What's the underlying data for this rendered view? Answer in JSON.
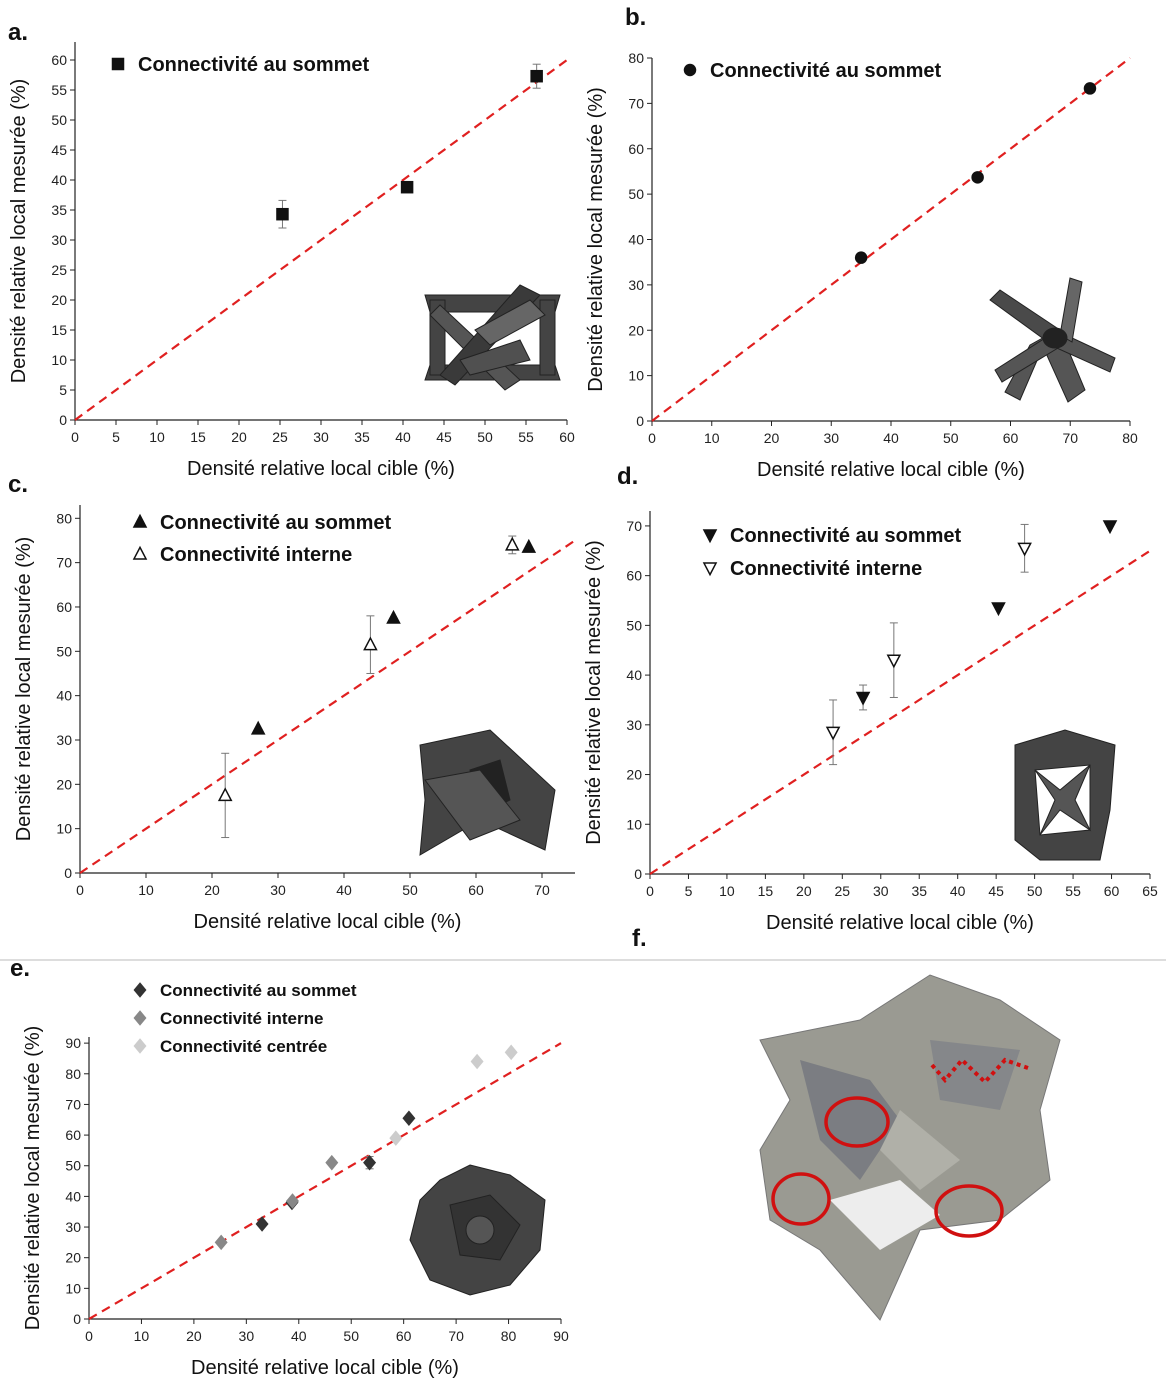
{
  "chart_data": [
    {
      "type": "scatter",
      "panel": "a.",
      "xlabel": "Densité relative local cible (%)",
      "ylabel": "Densité relative local mesurée (%)",
      "xlim": [
        0,
        60
      ],
      "ylim": [
        0,
        63
      ],
      "xticks": [
        0,
        5,
        10,
        15,
        20,
        25,
        30,
        35,
        40,
        45,
        50,
        55,
        60
      ],
      "yticks": [
        0,
        5,
        10,
        15,
        20,
        25,
        30,
        35,
        40,
        45,
        50,
        55,
        60
      ],
      "diagonal": {
        "color": "#e02020",
        "dashed": true
      },
      "series": [
        {
          "name": "Connectivité au sommet",
          "color": "#111111",
          "marker": "square",
          "filled": true,
          "x": [
            25.3,
            40.5,
            56.3
          ],
          "values": [
            34.3,
            38.8,
            57.3
          ],
          "errors": [
            2.3,
            0.8,
            2
          ]
        }
      ]
    },
    {
      "type": "scatter",
      "panel": "b.",
      "xlabel": "Densité relative local cible (%)",
      "ylabel": "Densité relative local mesurée (%)",
      "xlim": [
        0,
        80
      ],
      "ylim": [
        0,
        80
      ],
      "xticks": [
        0,
        10,
        20,
        30,
        40,
        50,
        60,
        70,
        80
      ],
      "yticks": [
        0,
        10,
        20,
        30,
        40,
        50,
        60,
        70,
        80
      ],
      "diagonal": {
        "color": "#e02020",
        "dashed": true
      },
      "series": [
        {
          "name": "Connectivité au sommet",
          "color": "#111111",
          "marker": "circle",
          "filled": true,
          "x": [
            35,
            54.5,
            73.3
          ],
          "values": [
            36,
            53.7,
            73.3
          ]
        }
      ]
    },
    {
      "type": "scatter",
      "panel": "c.",
      "xlabel": "Densité relative local cible (%)",
      "ylabel": "Densité relative local mesurée (%)",
      "xlim": [
        0,
        75
      ],
      "ylim": [
        0,
        83
      ],
      "xticks": [
        0,
        10,
        20,
        30,
        40,
        50,
        60,
        70
      ],
      "yticks": [
        0,
        10,
        20,
        30,
        40,
        50,
        60,
        70,
        80
      ],
      "diagonal": {
        "color": "#e02020",
        "dashed": true
      },
      "series": [
        {
          "name": "Connectivité au sommet",
          "color": "#111111",
          "marker": "triangle-up",
          "filled": true,
          "x": [
            27,
            47.5,
            68
          ],
          "values": [
            32.5,
            57.5,
            73.5
          ]
        },
        {
          "name": "Connectivité interne",
          "color": "#111111",
          "marker": "triangle-up",
          "filled": false,
          "x": [
            22,
            44,
            65.5
          ],
          "values": [
            17.5,
            51.5,
            74
          ],
          "errors": [
            9.5,
            6.5,
            2
          ]
        }
      ]
    },
    {
      "type": "scatter",
      "panel": "d.",
      "xlabel": "Densité relative local cible (%)",
      "ylabel": "Densité relative local mesurée (%)",
      "xlim": [
        0,
        65
      ],
      "ylim": [
        0,
        73
      ],
      "xticks": [
        0,
        5,
        10,
        15,
        20,
        25,
        30,
        35,
        40,
        45,
        50,
        55,
        60,
        65
      ],
      "yticks": [
        0,
        10,
        20,
        30,
        40,
        50,
        60,
        70
      ],
      "diagonal": {
        "color": "#e02020",
        "dashed": true
      },
      "series": [
        {
          "name": "Connectivité au sommet",
          "color": "#111111",
          "marker": "triangle-down",
          "filled": true,
          "x": [
            27.7,
            45.3,
            59.8
          ],
          "values": [
            35.5,
            53.5,
            70
          ],
          "errors": [
            2.5,
            null,
            null
          ]
        },
        {
          "name": "Connectivité interne",
          "color": "#111111",
          "marker": "triangle-down",
          "filled": false,
          "x": [
            23.8,
            31.7,
            48.7
          ],
          "values": [
            28.5,
            43,
            65.5
          ],
          "errors": [
            6.5,
            7.5,
            4.8
          ]
        }
      ]
    },
    {
      "type": "scatter",
      "panel": "e.",
      "xlabel": "Densité relative local cible (%)",
      "ylabel": "Densité relative local mesurée (%)",
      "xlim": [
        0,
        90
      ],
      "ylim": [
        0,
        92
      ],
      "xticks": [
        0,
        10,
        20,
        30,
        40,
        50,
        60,
        70,
        80,
        90
      ],
      "yticks": [
        0,
        10,
        20,
        30,
        40,
        50,
        60,
        70,
        80,
        90
      ],
      "diagonal": {
        "color": "#e02020",
        "dashed": true
      },
      "series": [
        {
          "name": "Connectivité au sommet",
          "color": "#333333",
          "marker": "diamond",
          "filled": true,
          "x": [
            33,
            38.7,
            53.5,
            61
          ],
          "values": [
            31,
            38,
            51,
            65.5
          ],
          "errors": [
            null,
            null,
            2,
            null
          ]
        },
        {
          "name": "Connectivité interne",
          "color": "#888888",
          "marker": "diamond",
          "filled": true,
          "x": [
            25.2,
            38.8,
            46.3
          ],
          "values": [
            25,
            38.5,
            51
          ]
        },
        {
          "name": "Connectivité centrée",
          "color": "#cccccc",
          "marker": "diamond",
          "filled": true,
          "x": [
            58.5,
            74,
            80.5
          ],
          "values": [
            59,
            84,
            87
          ]
        }
      ]
    }
  ],
  "image_panel": {
    "label": "f."
  }
}
